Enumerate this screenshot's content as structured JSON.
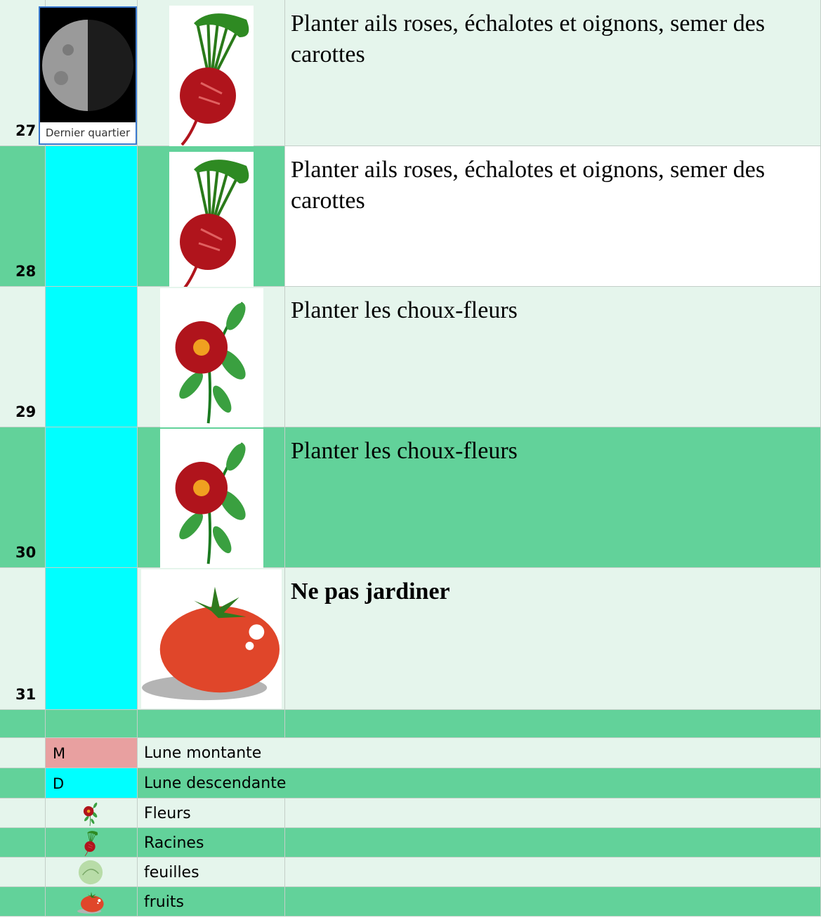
{
  "rows": [
    {
      "day": "27",
      "moon": "Dernier quartier",
      "text": "Planter ails roses, échalotes et oignons, semer des carottes"
    },
    {
      "day": "28",
      "text": "Planter ails roses, échalotes et oignons, semer des carottes"
    },
    {
      "day": "29",
      "text": "Planter les choux-fleurs"
    },
    {
      "day": "30",
      "text": "Planter les choux-fleurs"
    },
    {
      "day": "31",
      "text": "Ne pas jardiner"
    }
  ],
  "legend": {
    "moon": [
      {
        "code": "M",
        "label": "Lune montante"
      },
      {
        "code": "D",
        "label": "Lune descendante"
      }
    ],
    "types": [
      "Fleurs",
      "Racines",
      "feuilles",
      "fruits"
    ]
  }
}
